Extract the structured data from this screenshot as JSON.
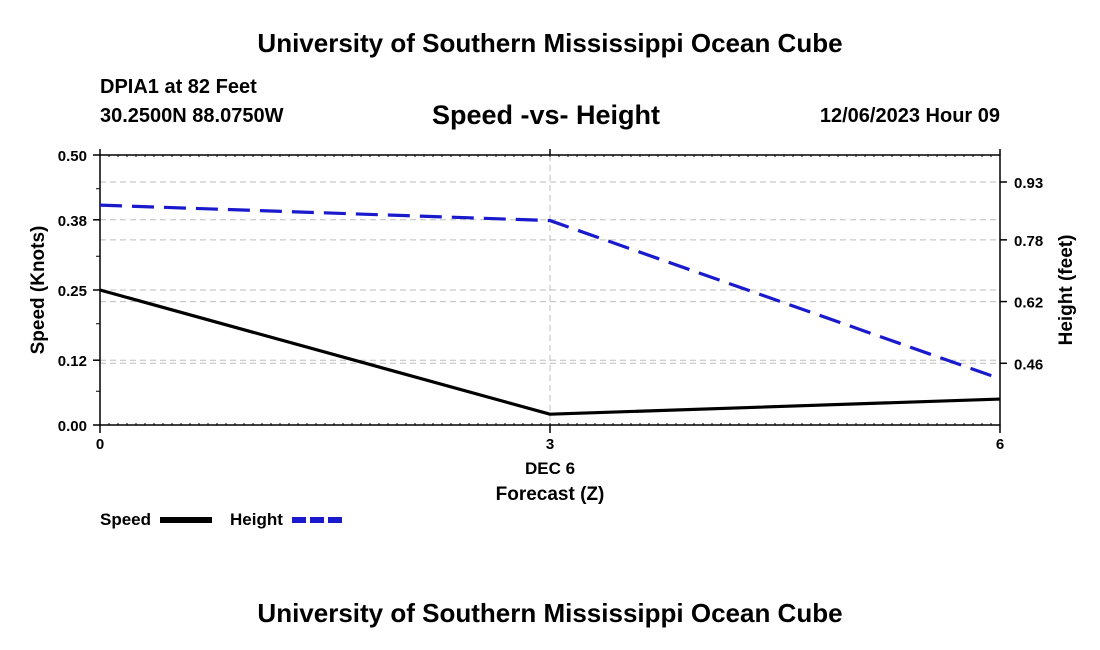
{
  "page": {
    "title": "University of Southern Mississippi Ocean Cube",
    "footer_title": "University of Southern Mississippi Ocean Cube",
    "station": "DPIA1 at 82 Feet",
    "coords": "30.2500N  88.0750W",
    "datetime": "12/06/2023 Hour 09"
  },
  "chart_data": {
    "type": "line",
    "title": "Speed -vs- Height",
    "xlabel": "Forecast (Z)",
    "x_date_label": "DEC 6",
    "x": [
      0,
      3,
      6
    ],
    "xlim": [
      0,
      6
    ],
    "x_ticks": [
      "0",
      "3",
      "6"
    ],
    "ylabel_left": "Speed (Knots)",
    "ylim_left": [
      0,
      0.5
    ],
    "y_ticks_left": [
      "0.00",
      "0.12",
      "0.25",
      "0.38",
      "0.50"
    ],
    "ylabel_right": "Height (feet)",
    "ylim_right": [
      0.3,
      1.0
    ],
    "y_ticks_right": [
      "0.46",
      "0.62",
      "0.78",
      "0.93"
    ],
    "grid": true,
    "series": [
      {
        "name": "Speed",
        "axis": "left",
        "color": "#000000",
        "style": "solid",
        "values": [
          0.25,
          0.02,
          0.048
        ]
      },
      {
        "name": "Height",
        "axis": "right",
        "color": "#1a1acc",
        "style": "dashed",
        "values": [
          0.87,
          0.83,
          0.42
        ]
      }
    ]
  }
}
